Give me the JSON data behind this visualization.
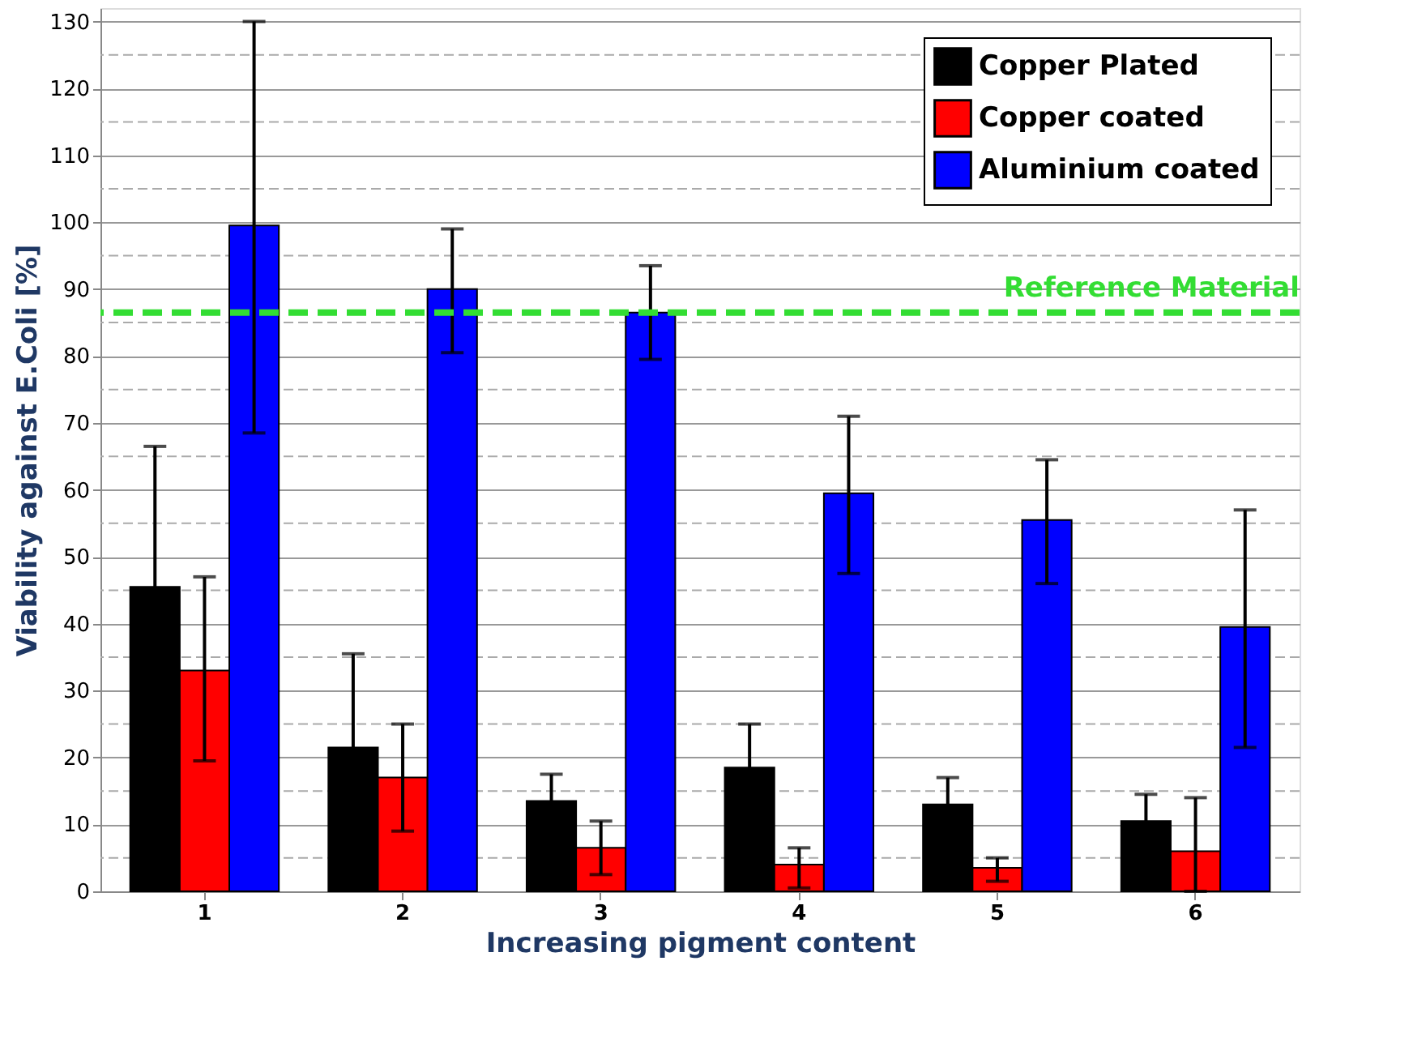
{
  "chart_data": {
    "type": "bar",
    "xlabel": "Increasing pigment content",
    "ylabel": "Viability against E.Coli [%]",
    "categories": [
      "1",
      "2",
      "3",
      "4",
      "5",
      "6"
    ],
    "series": [
      {
        "name": "Copper Plated",
        "color": "#000000",
        "values": [
          45.5,
          21.5,
          13.5,
          18.5,
          13,
          10.5
        ],
        "errors": [
          21,
          14,
          4,
          6.5,
          4,
          4
        ]
      },
      {
        "name": "Copper coated",
        "color": "#ff0000",
        "values": [
          33,
          17,
          6.5,
          4,
          3.5,
          6
        ],
        "errors": [
          [
            19.5,
            47
          ],
          [
            9,
            25
          ],
          [
            2.5,
            10.5
          ],
          [
            0.5,
            6.5
          ],
          [
            1.5,
            5
          ],
          [
            0,
            14
          ]
        ]
      },
      {
        "name": "Aluminium coated",
        "color": "#0000ff",
        "values": [
          99.5,
          90,
          86.5,
          59.5,
          55.5,
          39.5
        ],
        "errors": [
          [
            68.5,
            130
          ],
          [
            80.5,
            99
          ],
          [
            79.5,
            93.5
          ],
          [
            47.5,
            71
          ],
          [
            46,
            64.5
          ],
          [
            21.5,
            57
          ]
        ]
      }
    ],
    "ylim": [
      0,
      132
    ],
    "yticks": [
      0,
      {
        "value": 5,
        "label": null
      },
      10,
      {
        "value": 15,
        "label": null
      },
      20,
      {
        "value": 25,
        "label": null
      },
      30,
      {
        "value": 35,
        "label": null
      },
      40,
      {
        "value": 45,
        "label": null
      },
      50,
      {
        "value": 55,
        "label": null
      },
      60,
      {
        "value": 65,
        "label": null
      },
      70,
      {
        "value": 75,
        "label": null
      },
      80,
      {
        "value": 85,
        "label": null
      },
      90,
      {
        "value": 95,
        "label": null
      },
      100,
      {
        "value": 105,
        "label": null
      },
      110,
      {
        "value": 115,
        "label": null
      },
      120,
      {
        "value": 125,
        "label": null
      },
      130
    ],
    "grid": "y",
    "legend": "top right",
    "ref_lines": [
      {
        "axis": "y",
        "value": 86.5,
        "label": "Reference Material",
        "color": "#33dd33",
        "line_style": "dashed"
      }
    ]
  }
}
